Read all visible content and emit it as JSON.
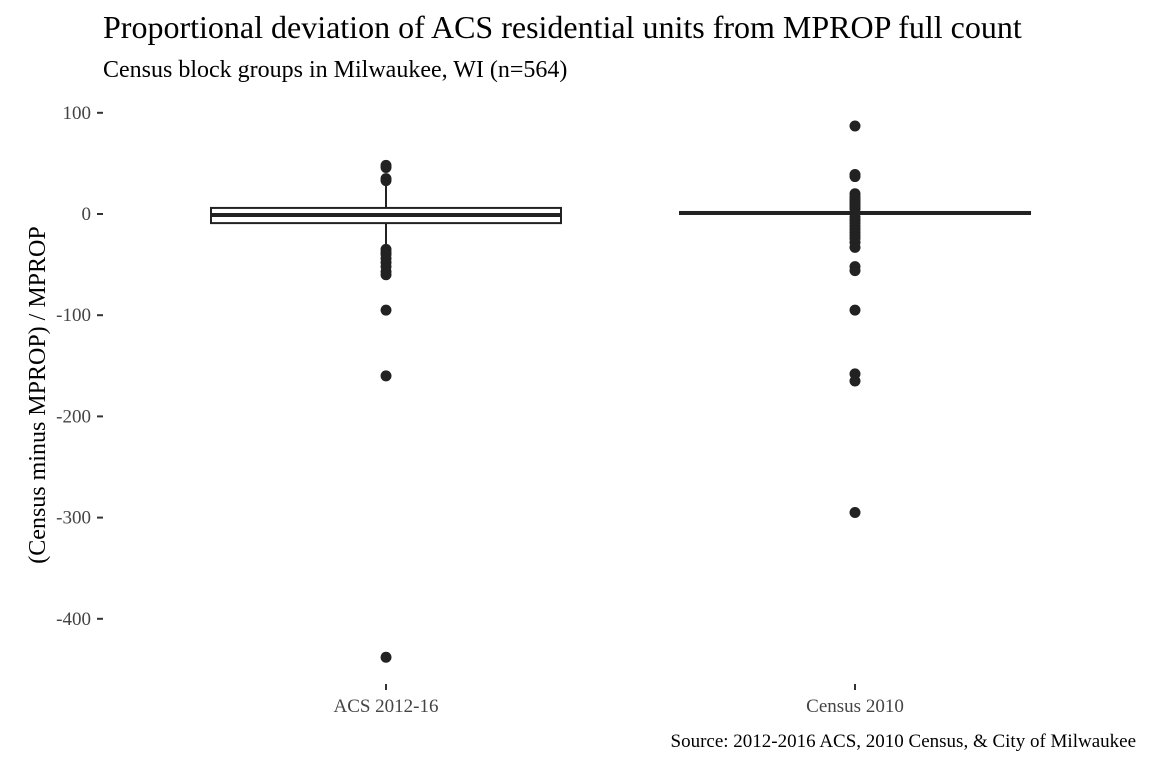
{
  "chart_data": {
    "type": "boxplot",
    "title": "Proportional deviation of ACS residential units from MPROP full count",
    "subtitle": "Census block groups in Milwaukee, WI (n=564)",
    "caption": "Source: 2012-2016 ACS, 2010 Census, & City of Milwaukee",
    "xlabel": "",
    "ylabel": "(Census minus MPROP) / MPROP",
    "ylim": [
      -460,
      105
    ],
    "yticks": [
      100,
      0,
      -100,
      -200,
      -300,
      -400
    ],
    "grid": false,
    "categories": [
      "ACS 2012-16",
      "Census 2010"
    ],
    "boxes": [
      {
        "category": "ACS 2012-16",
        "q1": -9,
        "median": -1,
        "q3": 6,
        "whisker_low": -30,
        "whisker_high": 28,
        "outliers": [
          48,
          46,
          35,
          33,
          -35,
          -38,
          -40,
          -44,
          -48,
          -52,
          -57,
          -60,
          -95,
          -160,
          -438
        ]
      },
      {
        "category": "Census 2010",
        "q1": 0,
        "median": 1,
        "q3": 2,
        "whisker_low": -1,
        "whisker_high": 3,
        "outliers": [
          87,
          39,
          37,
          20,
          17,
          15,
          13,
          11,
          9,
          7,
          5,
          -3,
          -6,
          -9,
          -12,
          -15,
          -18,
          -21,
          -24,
          -28,
          -33,
          -52,
          -56,
          -95,
          -158,
          -165,
          -295
        ]
      }
    ]
  }
}
